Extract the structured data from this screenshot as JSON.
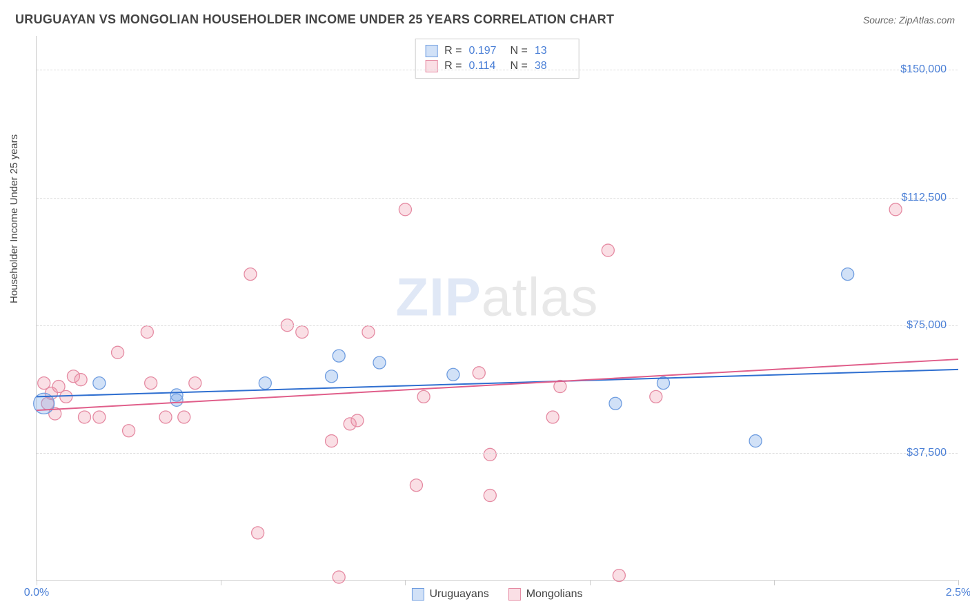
{
  "header": {
    "title": "URUGUAYAN VS MONGOLIAN HOUSEHOLDER INCOME UNDER 25 YEARS CORRELATION CHART",
    "source_prefix": "Source: ",
    "source": "ZipAtlas.com"
  },
  "watermark": {
    "part1": "ZIP",
    "part2": "atlas"
  },
  "chart": {
    "type": "scatter",
    "ylabel": "Householder Income Under 25 years",
    "xlim": [
      0.0,
      2.5
    ],
    "ylim": [
      0,
      160000
    ],
    "xticks": [
      0.0,
      0.5,
      1.0,
      1.5,
      2.0,
      2.5
    ],
    "xtick_labels": {
      "0": "0.0%",
      "2.5": "2.5%"
    },
    "yticks": [
      37500,
      75000,
      112500,
      150000
    ],
    "ytick_labels": [
      "$37,500",
      "$75,000",
      "$112,500",
      "$150,000"
    ],
    "grid_color": "#dddddd",
    "axis_color": "#cccccc",
    "background_color": "#ffffff",
    "tick_label_color": "#4a7fd6",
    "label_fontsize": 15,
    "tick_fontsize": 16
  },
  "series": {
    "uruguayans": {
      "label": "Uruguayans",
      "marker_fill": "rgba(122,168,232,0.35)",
      "marker_stroke": "#6f9de0",
      "line_color": "#2f6fd0",
      "line_width": 2,
      "marker_r": 9,
      "R": "0.197",
      "N": "13",
      "trend": {
        "y_at_x0": 54000,
        "y_at_xmax": 62000
      },
      "points": [
        {
          "x": 0.02,
          "y": 52000,
          "r": 15
        },
        {
          "x": 0.17,
          "y": 58000
        },
        {
          "x": 0.38,
          "y": 53000
        },
        {
          "x": 0.38,
          "y": 54500
        },
        {
          "x": 0.62,
          "y": 58000
        },
        {
          "x": 0.8,
          "y": 60000
        },
        {
          "x": 0.82,
          "y": 66000
        },
        {
          "x": 0.93,
          "y": 64000
        },
        {
          "x": 1.13,
          "y": 60500
        },
        {
          "x": 1.57,
          "y": 52000
        },
        {
          "x": 1.7,
          "y": 58000
        },
        {
          "x": 1.95,
          "y": 41000
        },
        {
          "x": 2.2,
          "y": 90000
        }
      ]
    },
    "mongolians": {
      "label": "Mongolians",
      "marker_fill": "rgba(240,150,170,0.30)",
      "marker_stroke": "#e58aa2",
      "line_color": "#e05e8a",
      "line_width": 2,
      "marker_r": 9,
      "R": "0.114",
      "N": "38",
      "trend": {
        "y_at_x0": 50000,
        "y_at_xmax": 65000
      },
      "points": [
        {
          "x": 0.02,
          "y": 58000
        },
        {
          "x": 0.03,
          "y": 52000
        },
        {
          "x": 0.04,
          "y": 55000
        },
        {
          "x": 0.05,
          "y": 49000
        },
        {
          "x": 0.06,
          "y": 57000
        },
        {
          "x": 0.08,
          "y": 54000
        },
        {
          "x": 0.1,
          "y": 60000
        },
        {
          "x": 0.12,
          "y": 59000
        },
        {
          "x": 0.13,
          "y": 48000
        },
        {
          "x": 0.17,
          "y": 48000
        },
        {
          "x": 0.22,
          "y": 67000
        },
        {
          "x": 0.25,
          "y": 44000
        },
        {
          "x": 0.3,
          "y": 73000
        },
        {
          "x": 0.31,
          "y": 58000
        },
        {
          "x": 0.35,
          "y": 48000
        },
        {
          "x": 0.43,
          "y": 58000
        },
        {
          "x": 0.58,
          "y": 90000
        },
        {
          "x": 0.6,
          "y": 14000
        },
        {
          "x": 0.68,
          "y": 75000
        },
        {
          "x": 0.72,
          "y": 73000
        },
        {
          "x": 0.8,
          "y": 41000
        },
        {
          "x": 0.82,
          "y": 1000
        },
        {
          "x": 0.85,
          "y": 46000
        },
        {
          "x": 0.87,
          "y": 47000
        },
        {
          "x": 0.9,
          "y": 73000
        },
        {
          "x": 1.0,
          "y": 109000
        },
        {
          "x": 1.03,
          "y": 28000
        },
        {
          "x": 1.05,
          "y": 54000
        },
        {
          "x": 1.2,
          "y": 61000
        },
        {
          "x": 1.23,
          "y": 25000
        },
        {
          "x": 1.23,
          "y": 37000
        },
        {
          "x": 1.4,
          "y": 48000
        },
        {
          "x": 1.42,
          "y": 57000
        },
        {
          "x": 1.55,
          "y": 97000
        },
        {
          "x": 1.58,
          "y": 1500
        },
        {
          "x": 1.68,
          "y": 54000
        },
        {
          "x": 2.33,
          "y": 109000
        },
        {
          "x": 0.4,
          "y": 48000
        }
      ]
    }
  },
  "stats_box": {
    "r_label": "R =",
    "n_label": "N ="
  },
  "legend": {
    "items": [
      "uruguayans",
      "mongolians"
    ]
  }
}
